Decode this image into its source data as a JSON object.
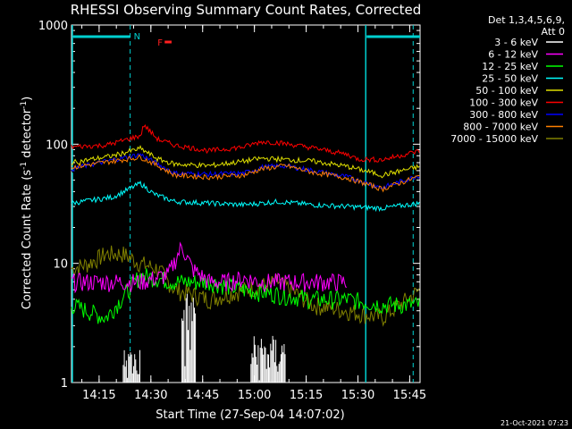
{
  "chart_data": {
    "type": "line",
    "title": "RHESSI Observing Summary Count Rates, Corrected",
    "xlabel": "Start Time (27-Sep-04 14:07:02)",
    "ylabel_main": "Corrected Count Rate (s",
    "ylabel_exp1": "-1",
    "ylabel_mid": " detector",
    "ylabel_exp2": "-1",
    "ylabel_end": ")",
    "yscale": "log",
    "ylim": [
      1,
      1000
    ],
    "xlim_minutes": [
      0,
      101
    ],
    "x_ticks": [
      {
        "label": "14:15",
        "min": 8
      },
      {
        "label": "14:30",
        "min": 23
      },
      {
        "label": "14:45",
        "min": 38
      },
      {
        "label": "15:00",
        "min": 53
      },
      {
        "label": "15:15",
        "min": 68
      },
      {
        "label": "15:30",
        "min": 83
      },
      {
        "label": "15:45",
        "min": 98
      }
    ],
    "y_ticks": [
      {
        "label": "1",
        "v": 1
      },
      {
        "label": "10",
        "v": 10
      },
      {
        "label": "100",
        "v": 100
      },
      {
        "label": "1000",
        "v": 1000
      }
    ],
    "legend_header": [
      "Det 1,3,4,5,6,9,",
      "Att 0"
    ],
    "legend_position": "right",
    "series": [
      {
        "name": "3 - 6 keV",
        "color": "#000000",
        "x": [
          0,
          20,
          25,
          30,
          35,
          40,
          45,
          50,
          55,
          62,
          70,
          80,
          90,
          101
        ],
        "y": [
          60,
          78,
          72,
          58,
          57,
          56,
          55,
          60,
          67,
          66,
          60,
          53,
          42,
          56
        ]
      },
      {
        "name": "6 - 12 keV",
        "color": "#ff00ff",
        "x": [
          0,
          20,
          28,
          32,
          35,
          40,
          45,
          50,
          55,
          60,
          70,
          80
        ],
        "y": [
          7,
          7,
          8,
          14,
          9,
          7,
          7,
          7.5,
          7,
          7,
          7,
          7
        ]
      },
      {
        "name": "12 - 25 keV",
        "color": "#00ff00",
        "x": [
          0,
          10,
          20,
          30,
          40,
          50,
          60,
          70,
          80,
          90,
          101
        ],
        "y": [
          4.5,
          3.5,
          8,
          7,
          7,
          6,
          5.5,
          5,
          5,
          4.5,
          4.5
        ]
      },
      {
        "name": "25 - 50 keV",
        "color": "#00ffff",
        "x": [
          0,
          12,
          20,
          24,
          30,
          40,
          50,
          60,
          70,
          80,
          90,
          101
        ],
        "y": [
          32,
          36,
          47,
          38,
          33,
          32,
          31,
          33,
          31,
          30,
          29,
          32
        ]
      },
      {
        "name": "50 - 100 keV",
        "color": "#e0e000",
        "x": [
          0,
          12,
          20,
          25,
          30,
          40,
          50,
          55,
          60,
          70,
          80,
          90,
          101
        ],
        "y": [
          70,
          80,
          92,
          75,
          68,
          66,
          72,
          76,
          75,
          72,
          65,
          55,
          65
        ]
      },
      {
        "name": "100 - 300 keV",
        "color": "#ff0000",
        "x": [
          0,
          10,
          20,
          21,
          25,
          30,
          40,
          50,
          55,
          60,
          70,
          80,
          83,
          90,
          101
        ],
        "y": [
          95,
          98,
          118,
          145,
          110,
          98,
          88,
          95,
          105,
          103,
          93,
          82,
          75,
          74,
          88
        ]
      },
      {
        "name": "300 - 800 keV",
        "color": "#0000ff",
        "x": [
          0,
          12,
          20,
          25,
          30,
          40,
          50,
          55,
          62,
          70,
          80,
          90,
          101
        ],
        "y": [
          62,
          74,
          82,
          68,
          57,
          56,
          57,
          64,
          66,
          60,
          53,
          43,
          55
        ]
      },
      {
        "name": "800 - 7000 keV",
        "color": "#ff8000",
        "x": [
          0,
          12,
          20,
          25,
          30,
          40,
          50,
          55,
          62,
          70,
          80,
          90,
          101
        ],
        "y": [
          64,
          72,
          78,
          66,
          55,
          53,
          55,
          62,
          66,
          58,
          52,
          42,
          54
        ]
      },
      {
        "name": "7000 - 15000 keV",
        "color": "#808000",
        "x": [
          0,
          5,
          10,
          15,
          20,
          25,
          30,
          35,
          40,
          50,
          60,
          70,
          80,
          90,
          101
        ],
        "y": [
          9,
          10,
          12,
          12,
          10,
          9,
          6,
          5.5,
          5,
          6,
          7,
          4.5,
          4,
          3.5,
          6
        ]
      }
    ],
    "counts_black_low": [
      {
        "x": [
          15,
          20
        ],
        "y": [
          1,
          2
        ]
      },
      {
        "x": [
          32,
          36
        ],
        "y": [
          1,
          6
        ]
      },
      {
        "x": [
          52,
          62
        ],
        "y": [
          1,
          2.5
        ]
      }
    ],
    "annotations": {
      "saa_label": "N",
      "flare_label": "F",
      "saa_segments": [
        [
          0,
          17
        ],
        [
          85,
          101
        ]
      ],
      "vertical_lines_solid": [
        0,
        85
      ],
      "vertical_lines_dashed": [
        17,
        99
      ],
      "flare_segment": [
        27,
        29
      ]
    },
    "footer_date": "21-Oct-2021 07:23"
  }
}
